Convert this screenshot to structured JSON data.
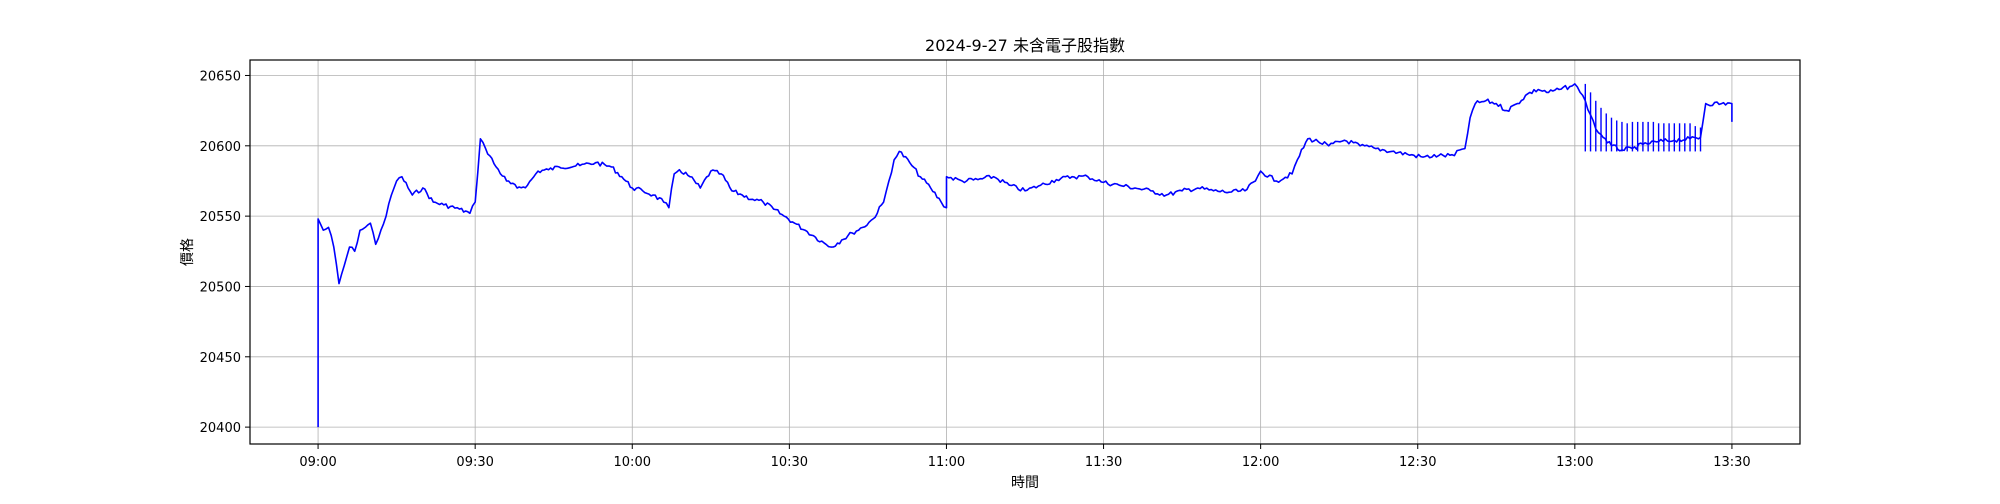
{
  "chart_data": {
    "type": "line",
    "title": "2024-9-27 未含電子股指數",
    "xlabel": "時間",
    "ylabel": "價格",
    "xlim": [
      "08:47",
      "13:43"
    ],
    "ylim": [
      20388,
      20661
    ],
    "x_ticks": [
      "09:00",
      "09:30",
      "10:00",
      "10:30",
      "11:00",
      "11:30",
      "12:00",
      "12:30",
      "13:00",
      "13:30"
    ],
    "y_ticks": [
      20400,
      20450,
      20500,
      20550,
      20600,
      20650
    ],
    "grid": true,
    "line_color": "#0000ff",
    "series": [
      {
        "points": [
          [
            "09:00",
            20400
          ],
          [
            "09:00",
            20548
          ],
          [
            "09:01",
            20540
          ],
          [
            "09:02",
            20542
          ],
          [
            "09:03",
            20528
          ],
          [
            "09:04",
            20502
          ],
          [
            "09:05",
            20515
          ],
          [
            "09:06",
            20528
          ],
          [
            "09:07",
            20525
          ],
          [
            "09:08",
            20540
          ],
          [
            "09:09",
            20542
          ],
          [
            "09:10",
            20545
          ],
          [
            "09:11",
            20530
          ],
          [
            "09:12",
            20540
          ],
          [
            "09:13",
            20550
          ],
          [
            "09:14",
            20565
          ],
          [
            "09:15",
            20575
          ],
          [
            "09:16",
            20578
          ],
          [
            "09:18",
            20565
          ],
          [
            "09:20",
            20570
          ],
          [
            "09:22",
            20560
          ],
          [
            "09:24",
            20558
          ],
          [
            "09:27",
            20555
          ],
          [
            "09:29",
            20552
          ],
          [
            "09:30",
            20560
          ],
          [
            "09:31",
            20605
          ],
          [
            "09:32",
            20598
          ],
          [
            "09:34",
            20585
          ],
          [
            "09:36",
            20575
          ],
          [
            "09:38",
            20570
          ],
          [
            "09:40",
            20572
          ],
          [
            "09:42",
            20582
          ],
          [
            "09:44",
            20583
          ],
          [
            "09:46",
            20585
          ],
          [
            "09:50",
            20586
          ],
          [
            "09:53",
            20588
          ],
          [
            "09:56",
            20585
          ],
          [
            "09:58",
            20578
          ],
          [
            "10:00",
            20570
          ],
          [
            "10:02",
            20568
          ],
          [
            "10:04",
            20565
          ],
          [
            "10:06",
            20560
          ],
          [
            "10:07",
            20556
          ],
          [
            "10:08",
            20580
          ],
          [
            "10:09",
            20583
          ],
          [
            "10:11",
            20578
          ],
          [
            "10:13",
            20570
          ],
          [
            "10:15",
            20582
          ],
          [
            "10:17",
            20580
          ],
          [
            "10:19",
            20568
          ],
          [
            "10:21",
            20565
          ],
          [
            "10:23",
            20562
          ],
          [
            "10:25",
            20560
          ],
          [
            "10:27",
            20555
          ],
          [
            "10:29",
            20550
          ],
          [
            "10:31",
            20545
          ],
          [
            "10:33",
            20540
          ],
          [
            "10:35",
            20535
          ],
          [
            "10:37",
            20530
          ],
          [
            "10:38",
            20528
          ],
          [
            "10:40",
            20533
          ],
          [
            "10:42",
            20538
          ],
          [
            "10:44",
            20542
          ],
          [
            "10:46",
            20548
          ],
          [
            "10:48",
            20560
          ],
          [
            "10:49",
            20575
          ],
          [
            "10:50",
            20590
          ],
          [
            "10:51",
            20596
          ],
          [
            "10:53",
            20588
          ],
          [
            "10:55",
            20578
          ],
          [
            "10:57",
            20570
          ],
          [
            "10:59",
            20560
          ],
          [
            "11:00",
            20556
          ],
          [
            "11:00",
            20578
          ],
          [
            "11:03",
            20575
          ],
          [
            "11:06",
            20576
          ],
          [
            "11:09",
            20578
          ],
          [
            "11:12",
            20572
          ],
          [
            "11:15",
            20568
          ],
          [
            "11:18",
            20572
          ],
          [
            "11:21",
            20576
          ],
          [
            "11:24",
            20578
          ],
          [
            "11:27",
            20578
          ],
          [
            "11:30",
            20574
          ],
          [
            "11:33",
            20572
          ],
          [
            "11:36",
            20570
          ],
          [
            "11:39",
            20568
          ],
          [
            "11:42",
            20565
          ],
          [
            "11:45",
            20568
          ],
          [
            "11:48",
            20570
          ],
          [
            "11:51",
            20568
          ],
          [
            "11:54",
            20567
          ],
          [
            "11:57",
            20568
          ],
          [
            "11:59",
            20575
          ],
          [
            "12:00",
            20582
          ],
          [
            "12:03",
            20575
          ],
          [
            "12:06",
            20580
          ],
          [
            "12:07",
            20590
          ],
          [
            "12:09",
            20605
          ],
          [
            "12:11",
            20603
          ],
          [
            "12:13",
            20600
          ],
          [
            "12:16",
            20604
          ],
          [
            "12:19",
            20600
          ],
          [
            "12:22",
            20598
          ],
          [
            "12:25",
            20596
          ],
          [
            "12:28",
            20594
          ],
          [
            "12:31",
            20592
          ],
          [
            "12:34",
            20593
          ],
          [
            "12:37",
            20593
          ],
          [
            "12:38",
            20597
          ],
          [
            "12:39",
            20598
          ],
          [
            "12:40",
            20620
          ],
          [
            "12:41",
            20630
          ],
          [
            "12:43",
            20632
          ],
          [
            "12:45",
            20630
          ],
          [
            "12:47",
            20625
          ],
          [
            "12:49",
            20630
          ],
          [
            "12:51",
            20637
          ],
          [
            "12:53",
            20640
          ],
          [
            "12:55",
            20638
          ],
          [
            "12:57",
            20640
          ],
          [
            "12:59",
            20642
          ],
          [
            "13:00",
            20644
          ],
          [
            "13:01",
            20638
          ],
          [
            "13:02",
            20632
          ],
          [
            "13:03",
            20622
          ],
          [
            "13:04",
            20612
          ],
          [
            "13:05",
            20608
          ],
          [
            "13:07",
            20600
          ],
          [
            "13:09",
            20597
          ],
          [
            "13:11",
            20598
          ],
          [
            "13:13",
            20601
          ],
          [
            "13:16",
            20603
          ],
          [
            "13:19",
            20604
          ],
          [
            "13:22",
            20605
          ],
          [
            "13:24",
            20606
          ],
          [
            "13:25",
            20630
          ],
          [
            "13:28",
            20630
          ],
          [
            "13:30",
            20630
          ],
          [
            "13:30",
            20617
          ]
        ],
        "spikes": [
          [
            "13:02",
            20644
          ],
          [
            "13:03",
            20638
          ],
          [
            "13:04",
            20632
          ],
          [
            "13:05",
            20627
          ],
          [
            "13:06",
            20623
          ],
          [
            "13:07",
            20620
          ],
          [
            "13:08",
            20618
          ],
          [
            "13:09",
            20617
          ],
          [
            "13:10",
            20616
          ],
          [
            "13:11",
            20617
          ],
          [
            "13:12",
            20617
          ],
          [
            "13:13",
            20617
          ],
          [
            "13:14",
            20617
          ],
          [
            "13:15",
            20617
          ],
          [
            "13:16",
            20616
          ],
          [
            "13:17",
            20616
          ],
          [
            "13:18",
            20616
          ],
          [
            "13:19",
            20616
          ],
          [
            "13:20",
            20616
          ],
          [
            "13:21",
            20616
          ],
          [
            "13:22",
            20616
          ],
          [
            "13:23",
            20614
          ],
          [
            "13:24",
            20613
          ]
        ]
      }
    ]
  }
}
